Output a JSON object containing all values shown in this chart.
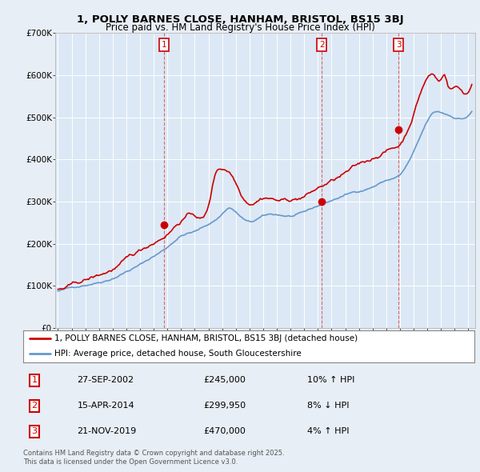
{
  "title": "1, POLLY BARNES CLOSE, HANHAM, BRISTOL, BS15 3BJ",
  "subtitle": "Price paid vs. HM Land Registry's House Price Index (HPI)",
  "background_color": "#e8eef5",
  "plot_background": "#dce8f5",
  "ylim": [
    0,
    700000
  ],
  "yticks": [
    0,
    100000,
    200000,
    300000,
    400000,
    500000,
    600000,
    700000
  ],
  "ytick_labels": [
    "£0",
    "£100K",
    "£200K",
    "£300K",
    "£400K",
    "£500K",
    "£600K",
    "£700K"
  ],
  "transactions": [
    {
      "label": "1",
      "date": "27-SEP-2002",
      "year": 2002.74,
      "price": 245000,
      "pct": "10%",
      "dir": "↑",
      "hpi_dir": "HPI"
    },
    {
      "label": "2",
      "date": "15-APR-2014",
      "year": 2014.29,
      "price": 299950,
      "pct": "8%",
      "dir": "↓",
      "hpi_dir": "HPI"
    },
    {
      "label": "3",
      "date": "21-NOV-2019",
      "year": 2019.89,
      "price": 470000,
      "pct": "4%",
      "dir": "↑",
      "hpi_dir": "HPI"
    }
  ],
  "legend_line1": "1, POLLY BARNES CLOSE, HANHAM, BRISTOL, BS15 3BJ (detached house)",
  "legend_line2": "HPI: Average price, detached house, South Gloucestershire",
  "legend_color1": "#cc0000",
  "legend_color2": "#6699cc",
  "footer": "Contains HM Land Registry data © Crown copyright and database right 2025.\nThis data is licensed under the Open Government Licence v3.0."
}
